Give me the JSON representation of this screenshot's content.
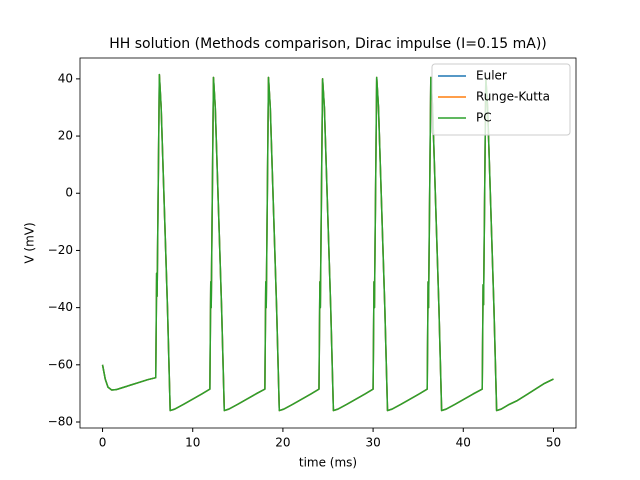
{
  "chart_data": {
    "type": "line",
    "title": "HH solution (Methods comparison, Dirac impulse (I=0.15 mA))",
    "xlabel": "time (ms)",
    "ylabel": "V (mV)",
    "x": [
      0,
      0.3,
      0.6,
      1,
      1.5,
      2,
      3,
      4,
      5,
      5.9,
      6.0,
      6.05,
      6.3,
      6.5,
      7.2,
      7.5,
      8,
      9,
      10,
      11,
      11.9,
      12.0,
      12.05,
      12.3,
      12.5,
      13.2,
      13.5,
      14,
      15,
      16,
      17,
      18.0,
      18.1,
      18.15,
      18.4,
      18.6,
      19.3,
      19.6,
      20.1,
      21.1,
      22.1,
      23.1,
      24.0,
      24.1,
      24.15,
      24.4,
      24.6,
      25.3,
      25.6,
      26.1,
      27.1,
      28.1,
      29.1,
      30.0,
      30.1,
      30.15,
      30.4,
      30.6,
      31.3,
      31.6,
      32.1,
      33.1,
      34.1,
      35.1,
      36.0,
      36.1,
      36.15,
      36.4,
      36.6,
      37.3,
      37.6,
      38.1,
      39.1,
      40.1,
      41.1,
      42.1,
      42.2,
      42.25,
      42.5,
      42.7,
      43.4,
      43.7,
      44.2,
      45,
      46,
      47,
      48,
      49,
      50
    ],
    "series": [
      {
        "name": "Euler",
        "color": "#1f77b4",
        "values": [
          -60,
          -65,
          -67.8,
          -68.8,
          -68.7,
          -68.2,
          -67.2,
          -66.2,
          -65.2,
          -64.5,
          -28,
          -36,
          41.5,
          30,
          -40,
          -76,
          -75.5,
          -73.8,
          -72,
          -70.2,
          -68.5,
          -31,
          -40,
          40.5,
          30,
          -40,
          -76,
          -75.5,
          -73.8,
          -72,
          -70.2,
          -68.5,
          -31,
          -40,
          40.5,
          30,
          -40,
          -76,
          -75.5,
          -73.8,
          -72,
          -70.2,
          -68.5,
          -31,
          -40,
          40,
          30,
          -40,
          -76,
          -75.5,
          -73.8,
          -72,
          -70.2,
          -68.5,
          -31,
          -40,
          40.5,
          30,
          -40,
          -76,
          -75.5,
          -73.8,
          -72,
          -70.2,
          -68.5,
          -31,
          -40,
          40.5,
          30,
          -40,
          -76,
          -75.5,
          -73.8,
          -72,
          -70.2,
          -68.5,
          -32,
          -39,
          40.5,
          30,
          -40,
          -76,
          -75.5,
          -74,
          -72.5,
          -70.5,
          -68.5,
          -66.5,
          -65
        ]
      },
      {
        "name": "Runge-Kutta",
        "color": "#ff7f0e",
        "values": [
          -60,
          -65,
          -67.8,
          -68.8,
          -68.7,
          -68.2,
          -67.2,
          -66.2,
          -65.2,
          -64.5,
          -28,
          -36,
          41.5,
          30,
          -40,
          -76,
          -75.5,
          -73.8,
          -72,
          -70.2,
          -68.5,
          -31,
          -40,
          40.5,
          30,
          -40,
          -76,
          -75.5,
          -73.8,
          -72,
          -70.2,
          -68.5,
          -31,
          -40,
          40.5,
          30,
          -40,
          -76,
          -75.5,
          -73.8,
          -72,
          -70.2,
          -68.5,
          -31,
          -40,
          40,
          30,
          -40,
          -76,
          -75.5,
          -73.8,
          -72,
          -70.2,
          -68.5,
          -31,
          -40,
          40.5,
          30,
          -40,
          -76,
          -75.5,
          -73.8,
          -72,
          -70.2,
          -68.5,
          -31,
          -40,
          40.5,
          30,
          -40,
          -76,
          -75.5,
          -73.8,
          -72,
          -70.2,
          -68.5,
          -32,
          -39,
          40.5,
          30,
          -40,
          -76,
          -75.5,
          -74,
          -72.5,
          -70.5,
          -68.5,
          -66.5,
          -65
        ]
      },
      {
        "name": "PC",
        "color": "#2ca02c",
        "values": [
          -60,
          -65,
          -67.8,
          -68.8,
          -68.7,
          -68.2,
          -67.2,
          -66.2,
          -65.2,
          -64.5,
          -28,
          -36,
          41.5,
          30,
          -40,
          -76,
          -75.5,
          -73.8,
          -72,
          -70.2,
          -68.5,
          -31,
          -40,
          40.5,
          30,
          -40,
          -76,
          -75.5,
          -73.8,
          -72,
          -70.2,
          -68.5,
          -31,
          -40,
          40.5,
          30,
          -40,
          -76,
          -75.5,
          -73.8,
          -72,
          -70.2,
          -68.5,
          -31,
          -40,
          40,
          30,
          -40,
          -76,
          -75.5,
          -73.8,
          -72,
          -70.2,
          -68.5,
          -31,
          -40,
          40.5,
          30,
          -40,
          -76,
          -75.5,
          -73.8,
          -72,
          -70.2,
          -68.5,
          -31,
          -40,
          40.5,
          30,
          -40,
          -76,
          -75.5,
          -73.8,
          -72,
          -70.2,
          -68.5,
          -32,
          -39,
          40.5,
          30,
          -40,
          -76,
          -75.5,
          -74,
          -72.5,
          -70.5,
          -68.5,
          -66.5,
          -65
        ]
      }
    ],
    "xlim": [
      -2.5,
      52.5
    ],
    "xticks": [
      0,
      10,
      20,
      30,
      40,
      50
    ],
    "ylim": [
      -82.1,
      47.3
    ],
    "yticks": [
      {
        "value": -80,
        "label": "−80"
      },
      {
        "value": -60,
        "label": "−60"
      },
      {
        "value": -40,
        "label": "−40"
      },
      {
        "value": -20,
        "label": "−20"
      },
      0,
      20,
      40
    ],
    "legend": "upper right"
  }
}
